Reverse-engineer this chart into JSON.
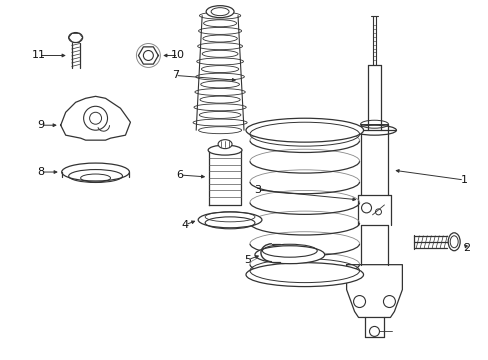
{
  "bg_color": "#ffffff",
  "line_color": "#333333",
  "text_color": "#111111",
  "fig_width": 4.89,
  "fig_height": 3.6,
  "dpi": 100
}
